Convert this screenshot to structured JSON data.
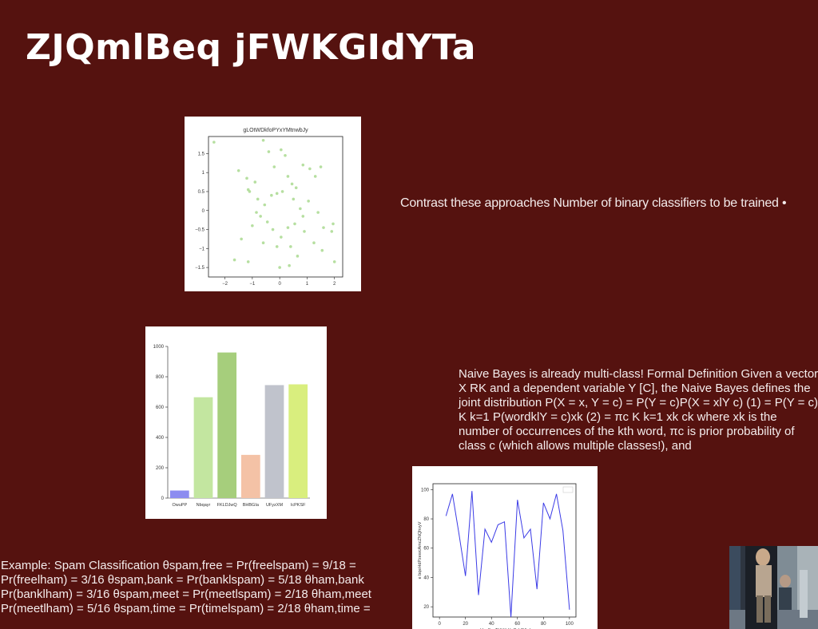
{
  "slide": {
    "title": "ZJQmlBeq jFWKGIdYTa",
    "contrast_text": "Contrast these approaches Number of binary classifiers to be trained •",
    "naive_bayes_text": "Naive Bayes is already multi-class! Formal Definition Given a vector X  RK and a dependent variable Y  [C], the Naive Bayes defines the joint distribution P(X = x, Y = c) = P(Y = c)P(X = xlY c) (1) = P(Y = c) K  k=1 P(wordklY = c)xk (2) = πc K  k=1 xk ck where xk is the number of occurrences of the kth word, πc is prior probability of class c (which allows multiple classes!), and",
    "example_text": "Example: Spam Classification θspam,free = Pr(freelspam) = 9/18 = Pr(freelham) = 3/16 θspam,bank = Pr(banklspam) = 5/18 θham,bank Pr(banklham) = 3/16 θspam,meet = Pr(meetlspam) = 2/18 θham,meet Pr(meetlham) = 5/16 θspam,time = Pr(timelspam) = 2/18 θham,time ="
  },
  "chart_data": [
    {
      "type": "scatter",
      "title": "gLOtWDkfoPYxYMtnwbJy",
      "xlim": [
        -2.6,
        2.3
      ],
      "ylim": [
        -1.75,
        1.95
      ],
      "xticks": [
        -2,
        -1,
        0,
        1,
        2
      ],
      "yticks": [
        -1.5,
        -1.0,
        -0.5,
        0.0,
        0.5,
        1.0,
        1.5
      ],
      "color": "#a9d98f",
      "points": [
        [
          -2.4,
          1.8
        ],
        [
          -1.5,
          1.05
        ],
        [
          -1.2,
          0.85
        ],
        [
          -1.15,
          0.55
        ],
        [
          -0.9,
          0.75
        ],
        [
          -0.6,
          1.85
        ],
        [
          -0.4,
          1.55
        ],
        [
          -0.2,
          1.15
        ],
        [
          0.05,
          1.6
        ],
        [
          0.2,
          1.45
        ],
        [
          0.3,
          0.9
        ],
        [
          0.45,
          0.7
        ],
        [
          0.6,
          0.6
        ],
        [
          0.85,
          1.2
        ],
        [
          1.1,
          1.1
        ],
        [
          1.3,
          0.9
        ],
        [
          1.5,
          1.15
        ],
        [
          -1.1,
          0.5
        ],
        [
          -0.8,
          0.3
        ],
        [
          -0.55,
          0.15
        ],
        [
          -0.3,
          0.4
        ],
        [
          -0.1,
          0.45
        ],
        [
          0.1,
          0.5
        ],
        [
          0.5,
          0.3
        ],
        [
          0.75,
          0.05
        ],
        [
          1.05,
          0.25
        ],
        [
          1.4,
          -0.05
        ],
        [
          -0.85,
          -0.05
        ],
        [
          -0.7,
          -0.15
        ],
        [
          -0.45,
          -0.3
        ],
        [
          -0.25,
          -0.5
        ],
        [
          0.05,
          -0.7
        ],
        [
          0.3,
          -0.45
        ],
        [
          0.55,
          -0.35
        ],
        [
          0.9,
          -0.55
        ],
        [
          1.25,
          -0.85
        ],
        [
          1.6,
          -0.45
        ],
        [
          1.9,
          -0.55
        ],
        [
          -1.4,
          -0.75
        ],
        [
          -0.6,
          -0.85
        ],
        [
          -0.1,
          -0.95
        ],
        [
          0.4,
          -0.95
        ],
        [
          0.65,
          -1.2
        ],
        [
          1.55,
          -1.05
        ],
        [
          -1.65,
          -1.3
        ],
        [
          -1.15,
          -1.35
        ],
        [
          0.0,
          -1.5
        ],
        [
          0.35,
          -1.45
        ],
        [
          2.0,
          -1.35
        ],
        [
          1.95,
          -0.35
        ],
        [
          -1.0,
          -0.4
        ],
        [
          0.85,
          -0.15
        ]
      ]
    },
    {
      "type": "bar",
      "categories": [
        "OwuPP",
        "Nbqayr",
        "FKLDJwQ",
        "BHBGIa",
        "UFyzXM",
        "IcPKSF"
      ],
      "values": [
        50,
        665,
        960,
        285,
        745,
        750
      ],
      "colors": [
        "#8c8cf0",
        "#c3e6a0",
        "#a6ce7c",
        "#f4c2a6",
        "#c0c3cc",
        "#d9ee7e"
      ],
      "ylim": [
        0,
        1000
      ],
      "yticks": [
        0,
        200,
        400,
        600,
        800,
        1000
      ]
    },
    {
      "type": "line",
      "xlabel": "wHvsSzoTUUihHvCsbRAoh",
      "ylabel": "e bqeHdPzewcAmcZNQhvyV",
      "xlim": [
        -5,
        105
      ],
      "ylim": [
        13,
        104
      ],
      "xticks": [
        0,
        20,
        40,
        60,
        80,
        100
      ],
      "yticks": [
        20,
        40,
        60,
        80,
        100
      ],
      "color": "#3b3be6",
      "x": [
        5,
        10,
        15,
        20,
        25,
        30,
        35,
        40,
        45,
        50,
        55,
        60,
        65,
        70,
        75,
        80,
        85,
        90,
        95,
        100
      ],
      "y": [
        82,
        97,
        70,
        41,
        99,
        28,
        73,
        64,
        76,
        78,
        13,
        93,
        67,
        73,
        32,
        91,
        80,
        97,
        72,
        18
      ]
    }
  ]
}
